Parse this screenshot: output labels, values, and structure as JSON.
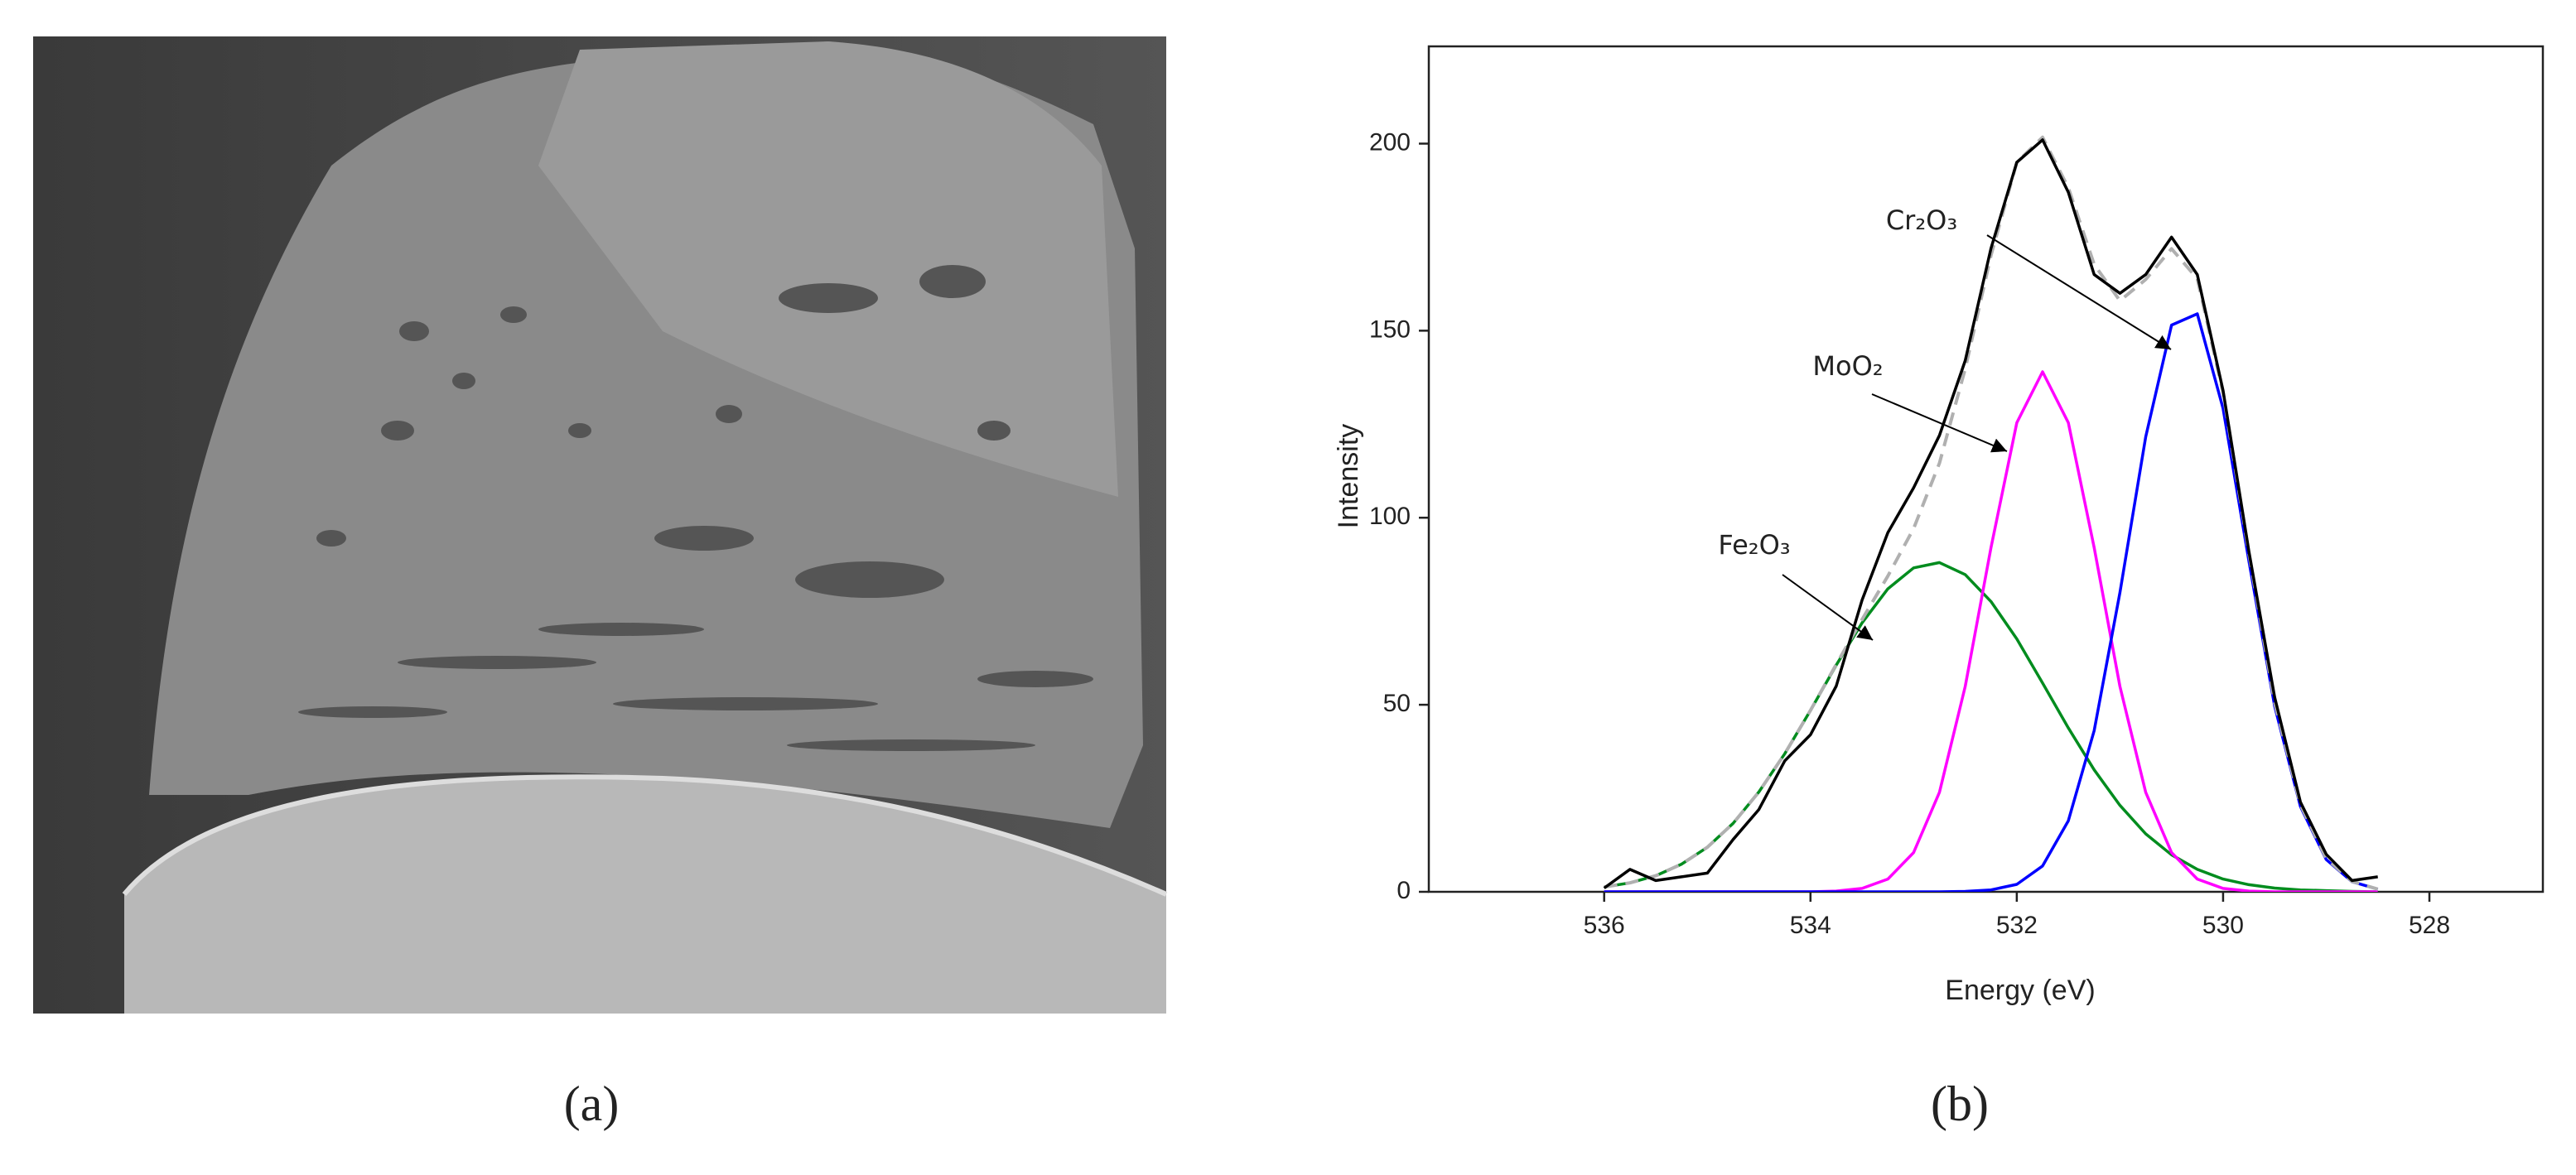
{
  "figure": {
    "panel_labels": [
      "(a)",
      "(b)"
    ]
  },
  "chart_data": {
    "type": "line",
    "xlabel": "Energy (eV)",
    "ylabel": "Intensity",
    "x": [
      536.0,
      535.75,
      535.5,
      535.25,
      535.0,
      534.75,
      534.5,
      534.25,
      534.0,
      533.75,
      533.5,
      533.25,
      533.0,
      532.75,
      532.5,
      532.25,
      532.0,
      531.75,
      531.5,
      531.25,
      531.0,
      530.75,
      530.5,
      530.25,
      530.0,
      529.75,
      529.5,
      529.25,
      529.0,
      528.75,
      528.5
    ],
    "xlim": [
      537.7,
      526.9
    ],
    "xticks": [
      536,
      534,
      532,
      530,
      528
    ],
    "ylim": [
      0,
      226
    ],
    "yticks": [
      0,
      50,
      100,
      150,
      200
    ],
    "series": [
      {
        "color": "#008c1e",
        "linestyle": "solid",
        "values": [
          1.3,
          2.4,
          4.3,
          7.4,
          11.9,
          18.3,
          26.7,
          36.9,
          48.5,
          60.6,
          71.9,
          81.0,
          86.6,
          88.0,
          84.8,
          77.6,
          67.6,
          55.8,
          43.8,
          32.6,
          23.1,
          15.5,
          9.9,
          6.0,
          3.4,
          1.9,
          1.0,
          0.5,
          0.3,
          0.1,
          0.0
        ]
      },
      {
        "color": "#ff00ff",
        "linestyle": "solid",
        "values": [
          0,
          0,
          0,
          0,
          0,
          0,
          0,
          0,
          0,
          0.2,
          0.9,
          3.4,
          10.5,
          26.6,
          54.9,
          92.0,
          125.4,
          139,
          125.4,
          92.0,
          54.9,
          26.6,
          10.5,
          3.4,
          0.9,
          0.2,
          0,
          0,
          0,
          0,
          0
        ]
      },
      {
        "color": "#0000ff",
        "linestyle": "solid",
        "values": [
          0,
          0,
          0,
          0,
          0,
          0,
          0,
          0,
          0,
          0,
          0,
          0,
          0,
          0,
          0.1,
          0.5,
          2.0,
          6.9,
          19.0,
          43.1,
          80.0,
          121.6,
          151.5,
          154.5,
          129.2,
          88.4,
          49.6,
          22.8,
          8.6,
          2.7,
          0.7
        ]
      },
      {
        "color": "#b0b0b0",
        "linestyle": "dashed",
        "values": [
          1.3,
          2.4,
          4.3,
          7.4,
          11.9,
          18.3,
          26.7,
          36.9,
          48.5,
          60.8,
          72.8,
          84.4,
          97.1,
          114.6,
          139.8,
          170.1,
          195.0,
          201.7,
          188.2,
          167.7,
          158.0,
          163.7,
          171.9,
          163.9,
          133.5,
          90.5,
          50.6,
          23.3,
          8.9,
          2.8,
          0.7
        ]
      },
      {
        "color": "#000000",
        "linestyle": "solid",
        "values": [
          1,
          6,
          3,
          4,
          5,
          14,
          22,
          35,
          42,
          55,
          78,
          96,
          108,
          122,
          142,
          172,
          195,
          201,
          187,
          165,
          160,
          165,
          175,
          165,
          134,
          91,
          52,
          24,
          10,
          3,
          4
        ]
      }
    ],
    "annotations": [
      {
        "text": "Cr₂O₃"
      },
      {
        "text": "MoO₂"
      },
      {
        "text": "Fe₂O₃"
      }
    ]
  }
}
